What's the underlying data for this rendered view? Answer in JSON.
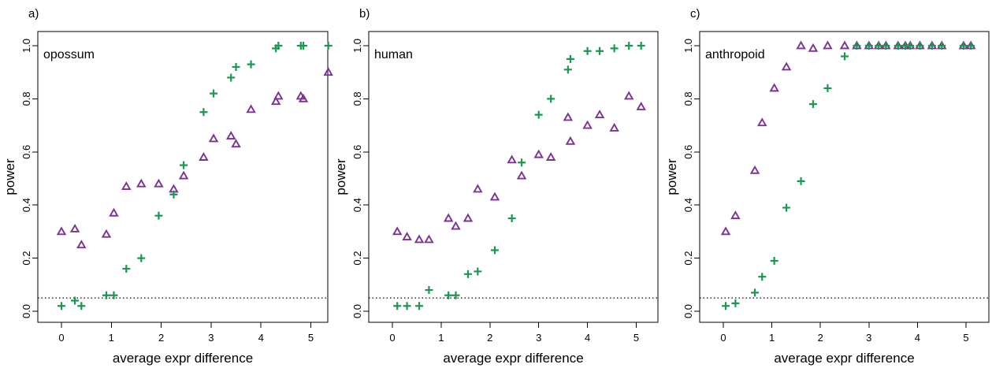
{
  "figure": {
    "xlabel": "average expr difference",
    "ylabel": "power",
    "colors": {
      "triangle_series": "#7B3294",
      "plus_series": "#1A9850"
    }
  },
  "chart_data": [
    {
      "type": "scatter",
      "panel_letter": "a)",
      "inset_label": "opossum",
      "xlabel": "average expr difference",
      "ylabel": "power",
      "xlim": [
        0,
        5.4
      ],
      "ylim": [
        0,
        1
      ],
      "x_ticks": [
        0,
        1,
        2,
        3,
        4,
        5
      ],
      "y_ticks": [
        "0.0",
        "0.2",
        "0.4",
        "0.6",
        "0.8",
        "1.0"
      ],
      "reference_line": 0.05,
      "series": [
        {
          "marker": "triangle",
          "color": "#7B3294",
          "x": [
            0.0,
            0.27,
            0.4,
            0.9,
            1.05,
            1.3,
            1.6,
            1.95,
            2.25,
            2.45,
            2.85,
            3.05,
            3.4,
            3.5,
            3.8,
            4.3,
            4.35,
            4.8,
            4.85,
            5.35
          ],
          "y": [
            0.3,
            0.31,
            0.25,
            0.29,
            0.37,
            0.47,
            0.48,
            0.48,
            0.46,
            0.51,
            0.58,
            0.65,
            0.66,
            0.63,
            0.76,
            0.79,
            0.81,
            0.81,
            0.8,
            0.9
          ]
        },
        {
          "marker": "plus",
          "color": "#1A9850",
          "x": [
            0.0,
            0.27,
            0.4,
            0.9,
            1.05,
            1.3,
            1.6,
            1.95,
            2.25,
            2.45,
            2.85,
            3.05,
            3.4,
            3.5,
            3.8,
            4.3,
            4.35,
            4.8,
            4.85,
            5.35
          ],
          "y": [
            0.02,
            0.04,
            0.02,
            0.06,
            0.06,
            0.16,
            0.2,
            0.36,
            0.44,
            0.55,
            0.75,
            0.82,
            0.88,
            0.92,
            0.93,
            0.99,
            1.0,
            1.0,
            1.0,
            1.0
          ]
        }
      ]
    },
    {
      "type": "scatter",
      "panel_letter": "b)",
      "inset_label": "human",
      "xlabel": "average expr difference",
      "ylabel": "power",
      "xlim": [
        0,
        5.2
      ],
      "ylim": [
        0,
        1
      ],
      "x_ticks": [
        0,
        1,
        2,
        3,
        4,
        5
      ],
      "y_ticks": [
        "0.0",
        "0.2",
        "0.4",
        "0.6",
        "0.8",
        "1.0"
      ],
      "reference_line": 0.05,
      "series": [
        {
          "marker": "triangle",
          "color": "#7B3294",
          "x": [
            0.1,
            0.3,
            0.55,
            0.75,
            1.15,
            1.3,
            1.55,
            1.75,
            2.1,
            2.45,
            2.65,
            3.0,
            3.25,
            3.6,
            3.65,
            4.0,
            4.25,
            4.55,
            4.85,
            5.1
          ],
          "y": [
            0.3,
            0.28,
            0.27,
            0.27,
            0.35,
            0.32,
            0.35,
            0.46,
            0.43,
            0.57,
            0.51,
            0.59,
            0.58,
            0.73,
            0.64,
            0.7,
            0.74,
            0.69,
            0.81,
            0.77
          ]
        },
        {
          "marker": "plus",
          "color": "#1A9850",
          "x": [
            0.1,
            0.3,
            0.55,
            0.75,
            1.15,
            1.3,
            1.55,
            1.75,
            2.1,
            2.45,
            2.65,
            3.0,
            3.25,
            3.6,
            3.65,
            4.0,
            4.25,
            4.55,
            4.85,
            5.1
          ],
          "y": [
            0.02,
            0.02,
            0.02,
            0.08,
            0.06,
            0.06,
            0.14,
            0.15,
            0.23,
            0.35,
            0.56,
            0.74,
            0.8,
            0.91,
            0.95,
            0.98,
            0.98,
            0.99,
            1.0,
            1.0
          ]
        }
      ]
    },
    {
      "type": "scatter",
      "panel_letter": "c)",
      "inset_label": "anthropoid",
      "xlabel": "average expr difference",
      "ylabel": "power",
      "xlim": [
        0,
        5.2
      ],
      "ylim": [
        0,
        1
      ],
      "x_ticks": [
        0,
        1,
        2,
        3,
        4,
        5
      ],
      "y_ticks": [
        "0.0",
        "0.2",
        "0.4",
        "0.6",
        "0.8",
        "1.0"
      ],
      "reference_line": 0.05,
      "series": [
        {
          "marker": "triangle",
          "color": "#7B3294",
          "x": [
            0.05,
            0.25,
            0.65,
            0.8,
            1.05,
            1.3,
            1.6,
            1.85,
            2.15,
            2.5,
            2.75,
            3.0,
            3.2,
            3.35,
            3.6,
            3.75,
            3.85,
            4.05,
            4.3,
            4.5,
            4.95,
            5.1
          ],
          "y": [
            0.3,
            0.36,
            0.53,
            0.71,
            0.84,
            0.92,
            1.0,
            0.99,
            1.0,
            1.0,
            1.0,
            1.0,
            1.0,
            1.0,
            1.0,
            1.0,
            1.0,
            1.0,
            1.0,
            1.0,
            1.0,
            1.0
          ]
        },
        {
          "marker": "plus",
          "color": "#1A9850",
          "x": [
            0.05,
            0.25,
            0.65,
            0.8,
            1.05,
            1.3,
            1.6,
            1.85,
            2.15,
            2.5,
            2.75,
            3.0,
            3.2,
            3.35,
            3.6,
            3.75,
            3.85,
            4.05,
            4.3,
            4.5,
            4.95,
            5.1
          ],
          "y": [
            0.02,
            0.03,
            0.07,
            0.13,
            0.19,
            0.39,
            0.49,
            0.78,
            0.84,
            0.96,
            1.0,
            1.0,
            1.0,
            1.0,
            1.0,
            1.0,
            1.0,
            1.0,
            1.0,
            1.0,
            1.0,
            1.0
          ]
        }
      ]
    }
  ]
}
